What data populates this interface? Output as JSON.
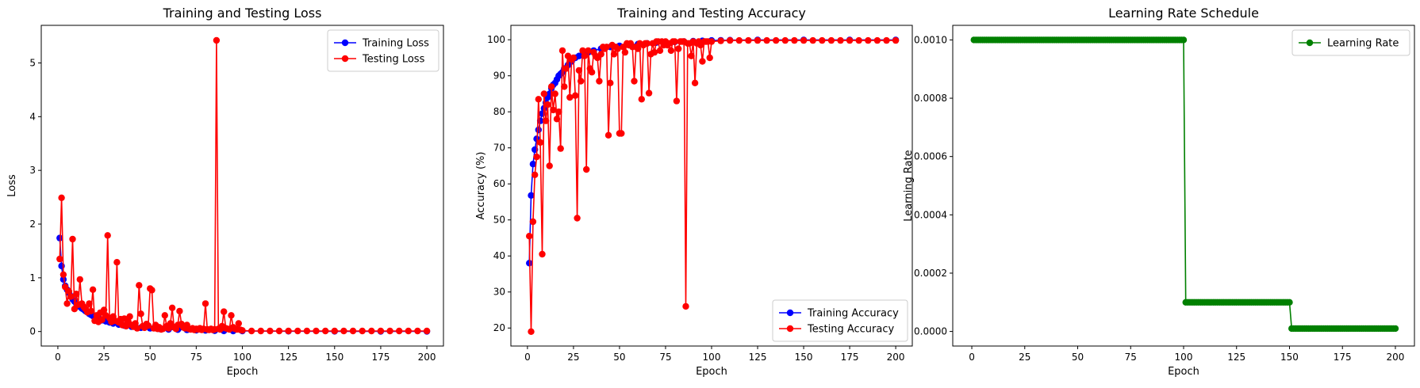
{
  "chart_data": [
    {
      "type": "line",
      "title": "Training and Testing Loss",
      "xlabel": "Epoch",
      "ylabel": "Loss",
      "xlim": [
        -9,
        209
      ],
      "ylim": [
        -0.27,
        5.7
      ],
      "xticks": [
        0,
        25,
        50,
        75,
        100,
        125,
        150,
        175,
        200
      ],
      "yticks": [
        0,
        1,
        2,
        3,
        4,
        5
      ],
      "legend_position": "top-right",
      "series": [
        {
          "name": "Training Loss",
          "color": "#0000ff",
          "x": [
            1,
            2,
            3,
            4,
            5,
            6,
            7,
            8,
            9,
            10,
            11,
            12,
            13,
            14,
            15,
            16,
            17,
            18,
            19,
            20,
            22,
            24,
            26,
            28,
            30,
            33,
            36,
            40,
            45,
            50,
            55,
            60,
            65,
            70,
            75,
            80,
            85,
            90,
            95,
            100,
            125,
            150,
            175,
            200
          ],
          "y": [
            1.74,
            1.22,
            0.97,
            0.85,
            0.78,
            0.72,
            0.66,
            0.6,
            0.56,
            0.52,
            0.49,
            0.46,
            0.43,
            0.41,
            0.38,
            0.36,
            0.33,
            0.31,
            0.29,
            0.27,
            0.24,
            0.21,
            0.19,
            0.17,
            0.15,
            0.13,
            0.11,
            0.09,
            0.07,
            0.06,
            0.05,
            0.04,
            0.035,
            0.03,
            0.025,
            0.02,
            0.015,
            0.012,
            0.01,
            0.01,
            0.005,
            0.004,
            0.003,
            0.003
          ]
        },
        {
          "name": "Testing Loss",
          "color": "#ff0000",
          "x": [
            1,
            2,
            3,
            4,
            5,
            6,
            7,
            8,
            9,
            10,
            11,
            12,
            13,
            14,
            15,
            16,
            17,
            18,
            19,
            20,
            21,
            22,
            23,
            24,
            25,
            26,
            27,
            28,
            29,
            30,
            31,
            32,
            33,
            34,
            35,
            36,
            37,
            38,
            39,
            40,
            41,
            42,
            43,
            44,
            45,
            46,
            47,
            48,
            49,
            50,
            51,
            52,
            53,
            54,
            55,
            56,
            57,
            58,
            59,
            60,
            61,
            62,
            63,
            64,
            65,
            66,
            67,
            68,
            69,
            70,
            71,
            72,
            73,
            74,
            75,
            76,
            77,
            78,
            79,
            80,
            81,
            82,
            83,
            84,
            85,
            86,
            87,
            88,
            89,
            90,
            91,
            92,
            93,
            94,
            95,
            96,
            97,
            98,
            99,
            100,
            105,
            110,
            115,
            120,
            125,
            130,
            135,
            140,
            145,
            150,
            155,
            160,
            165,
            170,
            175,
            180,
            185,
            190,
            195,
            200
          ],
          "y": [
            1.35,
            2.49,
            1.06,
            0.83,
            0.52,
            0.75,
            0.65,
            1.72,
            0.42,
            0.7,
            0.5,
            0.97,
            0.52,
            0.46,
            0.42,
            0.36,
            0.52,
            0.38,
            0.78,
            0.2,
            0.3,
            0.18,
            0.35,
            0.22,
            0.4,
            0.3,
            1.79,
            0.25,
            0.18,
            0.28,
            0.2,
            1.29,
            0.17,
            0.23,
            0.12,
            0.24,
            0.1,
            0.18,
            0.28,
            0.12,
            0.09,
            0.15,
            0.06,
            0.86,
            0.33,
            0.1,
            0.07,
            0.14,
            0.11,
            0.8,
            0.77,
            0.06,
            0.12,
            0.05,
            0.08,
            0.04,
            0.05,
            0.3,
            0.1,
            0.06,
            0.15,
            0.44,
            0.08,
            0.05,
            0.12,
            0.38,
            0.14,
            0.08,
            0.06,
            0.12,
            0.05,
            0.04,
            0.06,
            0.03,
            0.05,
            0.04,
            0.06,
            0.03,
            0.05,
            0.52,
            0.04,
            0.03,
            0.05,
            0.03,
            0.04,
            5.42,
            0.05,
            0.04,
            0.1,
            0.37,
            0.06,
            0.05,
            0.04,
            0.3,
            0.08,
            0.05,
            0.04,
            0.15,
            0.03,
            0.02,
            0.01,
            0.01,
            0.01,
            0.01,
            0.01,
            0.01,
            0.01,
            0.01,
            0.01,
            0.01,
            0.01,
            0.01,
            0.01,
            0.01,
            0.01,
            0.01,
            0.01,
            0.01,
            0.01,
            0.01
          ]
        }
      ]
    },
    {
      "type": "line",
      "title": "Training and Testing Accuracy",
      "xlabel": "Epoch",
      "ylabel": "Accuracy (%)",
      "xlim": [
        -9,
        209
      ],
      "ylim": [
        15,
        104
      ],
      "xticks": [
        0,
        25,
        50,
        75,
        100,
        125,
        150,
        175,
        200
      ],
      "yticks": [
        20,
        30,
        40,
        50,
        60,
        70,
        80,
        90,
        100
      ],
      "legend_position": "bottom-right",
      "series": [
        {
          "name": "Training Accuracy",
          "color": "#0000ff",
          "x": [
            1,
            2,
            3,
            4,
            5,
            6,
            7,
            8,
            9,
            10,
            11,
            12,
            13,
            14,
            15,
            16,
            17,
            18,
            19,
            20,
            22,
            24,
            26,
            28,
            30,
            33,
            36,
            40,
            45,
            50,
            55,
            60,
            65,
            70,
            75,
            80,
            85,
            90,
            95,
            100,
            105,
            110,
            125,
            150,
            175,
            200
          ],
          "y": [
            38,
            56.8,
            65.5,
            69.5,
            72.5,
            75,
            77.5,
            79.5,
            81,
            82.5,
            84,
            85,
            86.5,
            87.5,
            88,
            89,
            90,
            90.5,
            91,
            92,
            93,
            94,
            95,
            95.5,
            96,
            96.5,
            97,
            97.5,
            98,
            98.3,
            98.6,
            98.8,
            99,
            99.2,
            99.3,
            99.4,
            99.5,
            99.6,
            99.7,
            99.8,
            99.85,
            99.9,
            99.95,
            99.95,
            99.95,
            99.95
          ]
        },
        {
          "name": "Testing Accuracy",
          "color": "#ff0000",
          "x": [
            1,
            2,
            3,
            4,
            5,
            6,
            7,
            8,
            9,
            10,
            11,
            12,
            13,
            14,
            15,
            16,
            17,
            18,
            19,
            20,
            21,
            22,
            23,
            24,
            25,
            26,
            27,
            28,
            29,
            30,
            31,
            32,
            33,
            34,
            35,
            36,
            37,
            38,
            39,
            40,
            41,
            42,
            43,
            44,
            45,
            46,
            47,
            48,
            49,
            50,
            51,
            52,
            53,
            54,
            55,
            56,
            57,
            58,
            59,
            60,
            61,
            62,
            63,
            64,
            65,
            66,
            67,
            68,
            69,
            70,
            71,
            72,
            73,
            74,
            75,
            76,
            77,
            78,
            79,
            80,
            81,
            82,
            83,
            84,
            85,
            86,
            87,
            88,
            89,
            90,
            91,
            92,
            93,
            94,
            95,
            96,
            97,
            98,
            99,
            100,
            105,
            110,
            115,
            120,
            125,
            130,
            135,
            140,
            145,
            150,
            155,
            160,
            165,
            170,
            175,
            180,
            185,
            190,
            195,
            200
          ],
          "y": [
            45.5,
            19,
            49.5,
            62.5,
            67.5,
            83.5,
            71.5,
            40.5,
            85,
            77.5,
            82,
            65,
            87,
            80.5,
            85,
            78,
            80,
            69.8,
            97,
            87,
            92,
            95.5,
            84,
            94.5,
            95,
            84.5,
            50.5,
            91.5,
            88.5,
            97,
            95.5,
            64,
            97,
            92,
            91,
            96.5,
            95.5,
            95,
            88.5,
            96,
            98,
            97.5,
            98,
            73.5,
            88,
            98.5,
            96,
            98,
            97.5,
            74,
            74,
            98,
            96.5,
            99,
            98.5,
            99,
            98,
            88.5,
            98,
            97.5,
            99,
            83.5,
            98.5,
            99,
            99,
            85.2,
            96,
            99,
            96.5,
            99.5,
            99.5,
            97,
            99.5,
            98.5,
            99.5,
            98.5,
            99,
            97,
            99.5,
            99.5,
            83,
            97.5,
            99.5,
            99.5,
            99.5,
            26,
            99,
            99,
            95.5,
            99.5,
            88,
            99,
            99.5,
            98.5,
            94,
            99.5,
            99.5,
            99.5,
            95,
            99.5,
            99.7,
            99.8,
            99.8,
            99.8,
            99.8,
            99.8,
            99.8,
            99.8,
            99.8,
            99.8,
            99.8,
            99.8,
            99.8,
            99.8,
            99.8,
            99.8,
            99.8,
            99.8,
            99.8,
            99.8
          ]
        }
      ]
    },
    {
      "type": "line",
      "title": "Learning Rate Schedule",
      "xlabel": "Epoch",
      "ylabel": "Learning Rate",
      "xlim": [
        -9,
        209
      ],
      "ylim": [
        -5e-05,
        0.00105
      ],
      "xticks": [
        0,
        25,
        50,
        75,
        100,
        125,
        150,
        175,
        200
      ],
      "ytick_labels": [
        "0.0000",
        "0.0002",
        "0.0004",
        "0.0006",
        "0.0008",
        "0.0010"
      ],
      "yticks": [
        0,
        0.0002,
        0.0004,
        0.0006,
        0.0008,
        0.001
      ],
      "legend_position": "top-right",
      "series": [
        {
          "name": "Learning Rate",
          "color": "#008000",
          "schedule": [
            {
              "from": 1,
              "to": 100,
              "value": 0.001
            },
            {
              "from": 101,
              "to": 150,
              "value": 0.0001
            },
            {
              "from": 151,
              "to": 200,
              "value": 1e-05
            }
          ]
        }
      ]
    }
  ]
}
